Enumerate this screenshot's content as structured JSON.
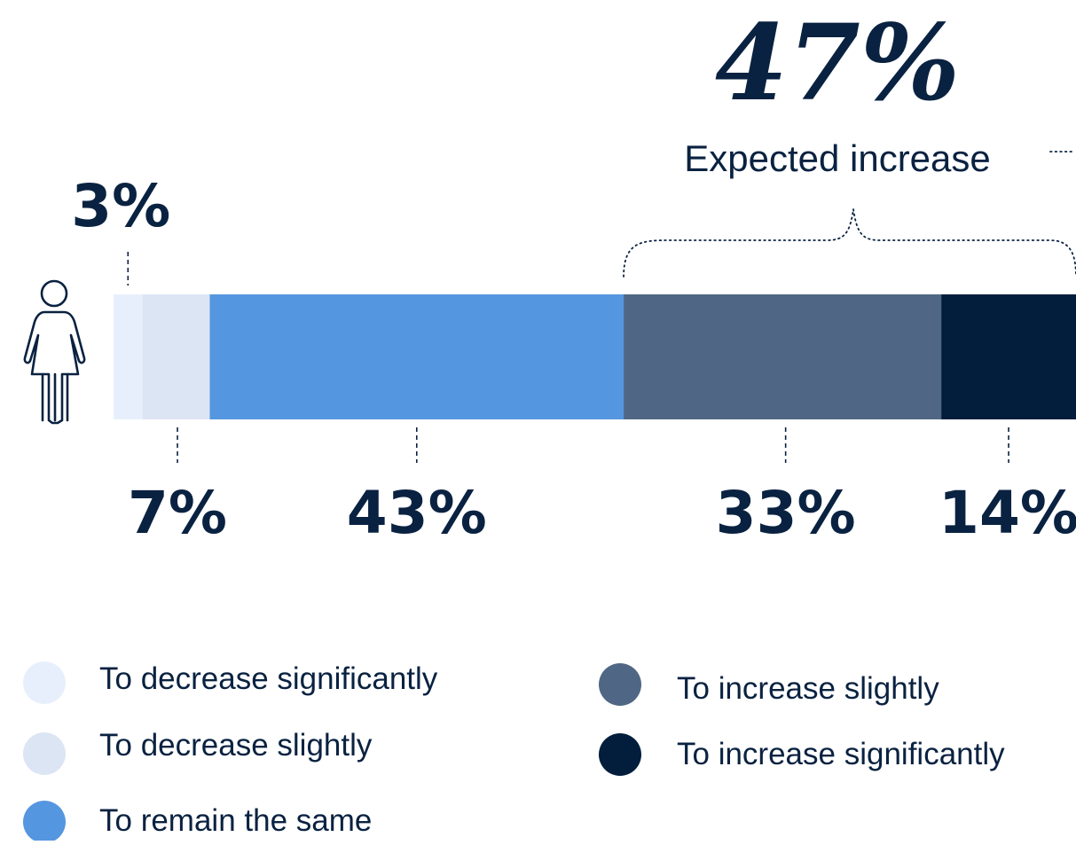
{
  "chart_data": {
    "type": "bar",
    "orientation": "horizontal-stacked",
    "unit": "%",
    "categories": [
      "To decrease significantly",
      "To decrease slightly",
      "To remain the same",
      "To increase slightly",
      "To increase significantly"
    ],
    "values": [
      3,
      7,
      43,
      33,
      14
    ],
    "labels": [
      "3%",
      "7%",
      "43%",
      "33%",
      "14%"
    ],
    "colors": [
      "#e8effc",
      "#dce5f4",
      "#5596e0",
      "#4f6784",
      "#021e3c"
    ],
    "bracket": {
      "value": "47%",
      "label": "Expected increase",
      "spans": [
        "To increase slightly",
        "To increase significantly"
      ]
    },
    "legend": {
      "placement": "bottom",
      "items": [
        {
          "label": "To decrease significantly",
          "color": "#e8effc"
        },
        {
          "label": "To decrease slightly",
          "color": "#dce5f4"
        },
        {
          "label": "To remain the same",
          "color": "#5596e0"
        },
        {
          "label": "To increase slightly",
          "color": "#4f6784"
        },
        {
          "label": "To increase significantly",
          "color": "#021e3c"
        }
      ]
    },
    "icon": "woman-icon"
  }
}
